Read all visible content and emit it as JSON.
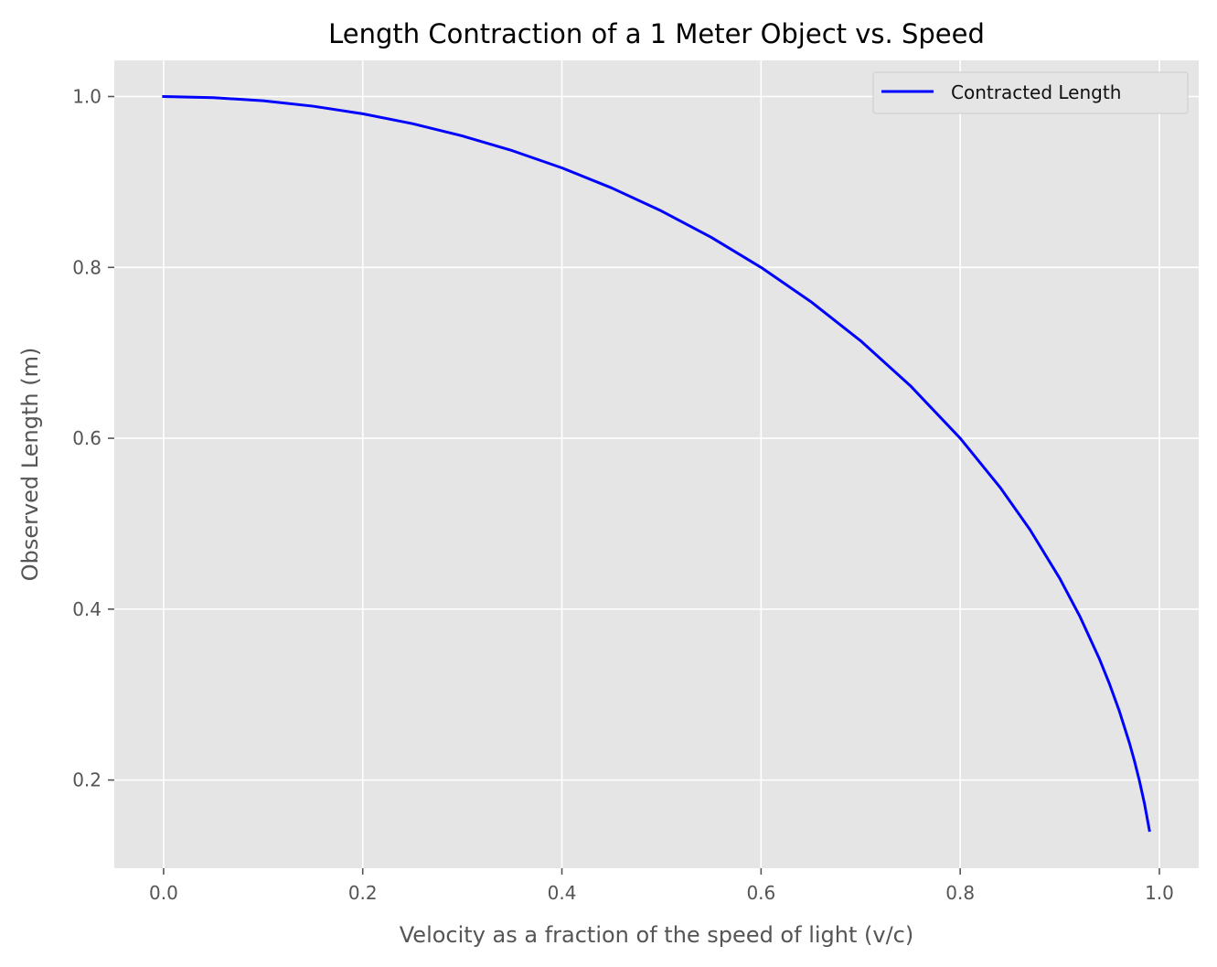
{
  "chart_data": {
    "type": "line",
    "title": "Length Contraction of a 1 Meter Object vs. Speed",
    "xlabel": "Velocity as a fraction of the speed of light (v/c)",
    "ylabel": "Observed Length (m)",
    "xlim": [
      -0.0495,
      1.0395
    ],
    "ylim": [
      0.0968,
      1.0423
    ],
    "xticks": [
      0.0,
      0.2,
      0.4,
      0.6,
      0.8,
      1.0
    ],
    "xtick_labels": [
      "0.0",
      "0.2",
      "0.4",
      "0.6",
      "0.8",
      "1.0"
    ],
    "yticks": [
      0.2,
      0.4,
      0.6,
      0.8,
      1.0
    ],
    "ytick_labels": [
      "0.2",
      "0.4",
      "0.6",
      "0.8",
      "1.0"
    ],
    "grid": true,
    "legend_position": "top-right",
    "series": [
      {
        "name": "Contracted Length",
        "color": "#0000ff",
        "x": [
          0.0,
          0.05,
          0.1,
          0.15,
          0.2,
          0.25,
          0.3,
          0.35,
          0.4,
          0.45,
          0.5,
          0.55,
          0.6,
          0.65,
          0.7,
          0.75,
          0.8,
          0.84,
          0.87,
          0.9,
          0.92,
          0.94,
          0.95,
          0.96,
          0.97,
          0.975,
          0.98,
          0.985,
          0.99
        ],
        "y": [
          1.0,
          0.9987,
          0.995,
          0.9887,
          0.9798,
          0.9682,
          0.9539,
          0.9367,
          0.9165,
          0.893,
          0.866,
          0.8352,
          0.8,
          0.7599,
          0.7141,
          0.6614,
          0.6,
          0.5426,
          0.4931,
          0.4359,
          0.3919,
          0.3412,
          0.3122,
          0.28,
          0.2431,
          0.2222,
          0.199,
          0.1726,
          0.1411
        ]
      }
    ]
  },
  "colors": {
    "plot_background": "#e5e5e5",
    "grid": "#ffffff",
    "line": "#0000ff"
  }
}
